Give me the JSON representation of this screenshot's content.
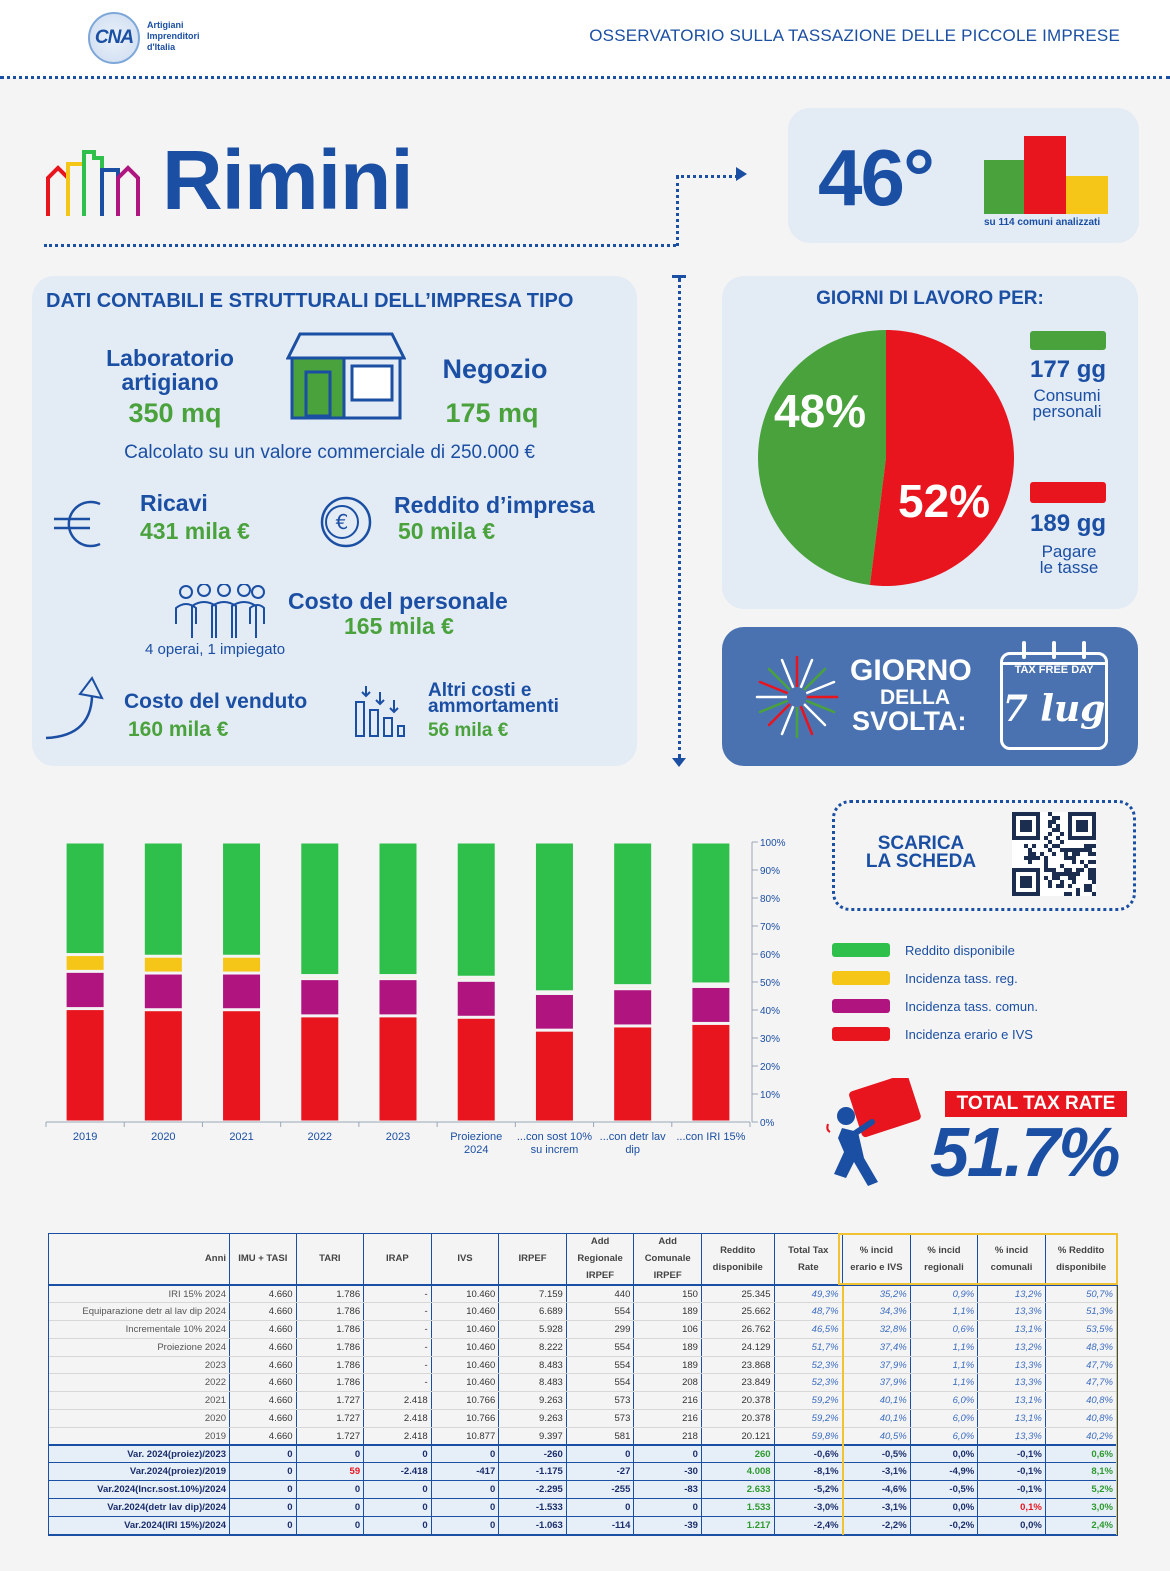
{
  "header": {
    "logo": "CNA",
    "logo_sub": "Artigiani\nImprenditori\nd'Italia",
    "title": "OSSERVATORIO SULLA TASSAZIONE DELLE PICCOLE IMPRESE"
  },
  "city": "Rimini",
  "rank": {
    "value": "46°",
    "subtitle": "su 114 comuni analizzati"
  },
  "dati": {
    "title": "DATI CONTABILI E STRUTTURALI DELL’IMPRESA TIPO",
    "laboratorio_label_1": "Laboratorio",
    "laboratorio_label_2": "artigiano",
    "laboratorio_value": "350 mq",
    "negozio_label": "Negozio",
    "negozio_value": "175 mq",
    "calcolato": "Calcolato su un valore commerciale di 250.000 €",
    "ricavi_label": "Ricavi",
    "ricavi_value": "431 mila €",
    "reddito_label": "Reddito d’impresa",
    "reddito_value": "50 mila €",
    "personale_label": "Costo del personale",
    "personale_value": "165 mila €",
    "personale_note": "4 operai, 1 impiegato",
    "venduto_label": "Costo del venduto",
    "venduto_value": "160 mila €",
    "altri_label_1": "Altri costi e",
    "altri_label_2": "ammortamenti",
    "altri_value": "56 mila €"
  },
  "giorni": {
    "title": "GIORNI DI LAVORO PER:",
    "pct_consumi": "48%",
    "pct_tasse": "52%",
    "consumi_days": "177 gg",
    "consumi_label_1": "Consumi",
    "consumi_label_2": "personali",
    "tasse_days": "189 gg",
    "tasse_label_1": "Pagare",
    "tasse_label_2": "le tasse",
    "consumi_fraction": 0.48,
    "tasse_fraction": 0.52
  },
  "svolta": {
    "line1": "GIORNO",
    "line2": "DELLA",
    "line3": "SVOLTA:",
    "calendar_header": "TAX FREE DAY",
    "date": "7 lug"
  },
  "scarica": {
    "line1": "SCARICA",
    "line2": "LA SCHEDA"
  },
  "total_tax": {
    "label": "TOTAL TAX RATE",
    "value": "51.7%"
  },
  "colors": {
    "green": "#2ec04a",
    "yellow": "#f5c518",
    "magenta": "#b0157f",
    "red": "#e8141e",
    "blue": "#1b4fa3"
  },
  "chart_data": {
    "type": "bar",
    "stacked": true,
    "categories": [
      "2019",
      "2020",
      "2021",
      "2022",
      "2023",
      "Proiezione 2024",
      "...con sost 10% su increm",
      "...con detr lav dip",
      "...con IRI 15%"
    ],
    "y_ticks": [
      "0%",
      "10%",
      "20%",
      "30%",
      "40%",
      "50%",
      "60%",
      "70%",
      "80%",
      "90%",
      "100%"
    ],
    "ylim": [
      0,
      100
    ],
    "series": [
      {
        "name": "Incidenza erario e IVS",
        "color": "#e8141e",
        "values": [
          40.5,
          40.1,
          40.1,
          37.9,
          37.9,
          37.4,
          32.8,
          34.3,
          35.2
        ]
      },
      {
        "name": "Incidenza tass. comun.",
        "color": "#b0157f",
        "values": [
          13.3,
          13.1,
          13.1,
          13.3,
          13.3,
          13.2,
          13.1,
          13.3,
          13.2
        ]
      },
      {
        "name": "Incidenza tass. reg.",
        "color": "#f5c518",
        "values": [
          6.0,
          6.0,
          6.0,
          1.1,
          1.1,
          1.1,
          0.6,
          1.1,
          0.9
        ]
      },
      {
        "name": "Reddito disponibile",
        "color": "#2ec04a",
        "values": [
          40.2,
          40.8,
          40.8,
          47.7,
          47.7,
          48.3,
          53.5,
          51.3,
          50.7
        ]
      }
    ],
    "legend_order": [
      "Reddito disponibile",
      "Incidenza tass. reg.",
      "Incidenza tass. comun.",
      "Incidenza erario e IVS"
    ]
  },
  "table": {
    "headers": [
      "Anni",
      "IMU + TASI",
      "TARI",
      "IRAP",
      "IVS",
      "IRPEF",
      "Add Regionale IRPEF",
      "Add Comunale IRPEF",
      "Reddito disponibile",
      "Total Tax Rate",
      "% incid erario e IVS",
      "% incid regionali",
      "% incid comunali",
      "% Reddito disponibile"
    ],
    "rows": [
      [
        "IRI 15% 2024",
        "4.660",
        "1.786",
        "-",
        "10.460",
        "7.159",
        "440",
        "150",
        "25.345",
        "49,3%",
        "35,2%",
        "0,9%",
        "13,2%",
        "50,7%"
      ],
      [
        "Equiparazione detr al lav dip 2024",
        "4.660",
        "1.786",
        "-",
        "10.460",
        "6.689",
        "554",
        "189",
        "25.662",
        "48,7%",
        "34,3%",
        "1,1%",
        "13,3%",
        "51,3%"
      ],
      [
        "Incrementale 10% 2024",
        "4.660",
        "1.786",
        "-",
        "10.460",
        "5.928",
        "299",
        "106",
        "26.762",
        "46,5%",
        "32,8%",
        "0,6%",
        "13,1%",
        "53,5%"
      ],
      [
        "Proiezione 2024",
        "4.660",
        "1.786",
        "-",
        "10.460",
        "8.222",
        "554",
        "189",
        "24.129",
        "51,7%",
        "37,4%",
        "1,1%",
        "13,2%",
        "48,3%"
      ],
      [
        "2023",
        "4.660",
        "1.786",
        "-",
        "10.460",
        "8.483",
        "554",
        "189",
        "23.868",
        "52,3%",
        "37,9%",
        "1,1%",
        "13,3%",
        "47,7%"
      ],
      [
        "2022",
        "4.660",
        "1.786",
        "-",
        "10.460",
        "8.483",
        "554",
        "208",
        "23.849",
        "52,3%",
        "37,9%",
        "1,1%",
        "13,3%",
        "47,7%"
      ],
      [
        "2021",
        "4.660",
        "1.727",
        "2.418",
        "10.766",
        "9.263",
        "573",
        "216",
        "20.378",
        "59,2%",
        "40,1%",
        "6,0%",
        "13,1%",
        "40,8%"
      ],
      [
        "2020",
        "4.660",
        "1.727",
        "2.418",
        "10.766",
        "9.263",
        "573",
        "216",
        "20.378",
        "59,2%",
        "40,1%",
        "6,0%",
        "13,1%",
        "40,8%"
      ],
      [
        "2019",
        "4.660",
        "1.727",
        "2.418",
        "10.877",
        "9.397",
        "581",
        "218",
        "20.121",
        "59,8%",
        "40,5%",
        "6,0%",
        "13,3%",
        "40,2%"
      ]
    ],
    "var_rows": [
      [
        "Var. 2024(proiez)/2023",
        "0",
        "0",
        "0",
        "0",
        "-260",
        "0",
        "0",
        "260",
        "-0,6%",
        "-0,5%",
        "0,0%",
        "-0,1%",
        "0,6%"
      ],
      [
        "Var.2024(proiez)/2019",
        "0",
        "59",
        "-2.418",
        "-417",
        "-1.175",
        "-27",
        "-30",
        "4.008",
        "-8,1%",
        "-3,1%",
        "-4,9%",
        "-0,1%",
        "8,1%"
      ],
      [
        "Var.2024(Incr.sost.10%)/2024",
        "0",
        "0",
        "0",
        "0",
        "-2.295",
        "-255",
        "-83",
        "2.633",
        "-5,2%",
        "-4,6%",
        "-0,5%",
        "-0,1%",
        "5,2%"
      ],
      [
        "Var.2024(detr lav dip)/2024",
        "0",
        "0",
        "0",
        "0",
        "-1.533",
        "0",
        "0",
        "1.533",
        "-3,0%",
        "-3,1%",
        "0,0%",
        "0,1%",
        "3,0%"
      ],
      [
        "Var.2024(IRI 15%)/2024",
        "0",
        "0",
        "0",
        "0",
        "-1.063",
        "-114",
        "-39",
        "1.217",
        "-2,4%",
        "-2,2%",
        "-0,2%",
        "0,0%",
        "2,4%"
      ]
    ]
  }
}
